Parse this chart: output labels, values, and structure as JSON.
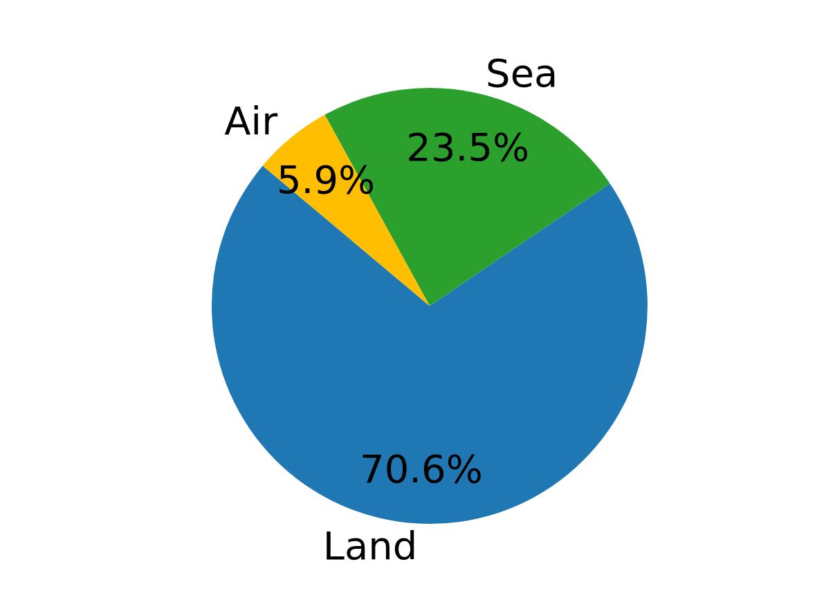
{
  "chart_data": {
    "type": "pie",
    "categories": [
      "Land",
      "Sea",
      "Air"
    ],
    "values": [
      70.6,
      23.5,
      5.9
    ],
    "colors": [
      "#1f77b4",
      "#2ca02c",
      "#ffbf00"
    ],
    "value_labels": [
      "70.6%",
      "23.5%",
      "5.9%"
    ]
  }
}
